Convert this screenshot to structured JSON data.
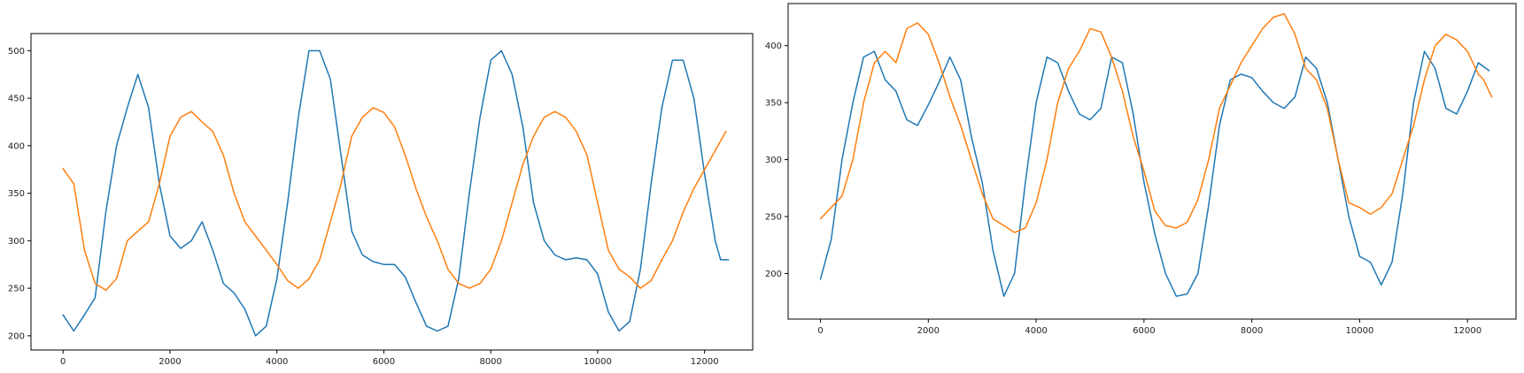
{
  "chart_data": [
    {
      "type": "line",
      "title": "",
      "xlabel": "",
      "ylabel": "",
      "xlim": [
        -600,
        12900
      ],
      "ylim": [
        185,
        518
      ],
      "xticks": [
        0,
        2000,
        4000,
        6000,
        8000,
        10000,
        12000
      ],
      "yticks": [
        200,
        250,
        300,
        350,
        400,
        450,
        500
      ],
      "grid": false,
      "series": [
        {
          "color": "#1f77b4",
          "points": [
            [
              0,
              222
            ],
            [
              200,
              205
            ],
            [
              400,
              222
            ],
            [
              600,
              240
            ],
            [
              800,
              330
            ],
            [
              1000,
              400
            ],
            [
              1200,
              440
            ],
            [
              1400,
              475
            ],
            [
              1600,
              440
            ],
            [
              1800,
              360
            ],
            [
              2000,
              305
            ],
            [
              2200,
              292
            ],
            [
              2400,
              300
            ],
            [
              2600,
              320
            ],
            [
              2800,
              290
            ],
            [
              3000,
              255
            ],
            [
              3200,
              245
            ],
            [
              3400,
              228
            ],
            [
              3600,
              200
            ],
            [
              3800,
              210
            ],
            [
              4000,
              260
            ],
            [
              4200,
              340
            ],
            [
              4400,
              430
            ],
            [
              4600,
              500
            ],
            [
              4800,
              500
            ],
            [
              5000,
              470
            ],
            [
              5200,
              390
            ],
            [
              5400,
              310
            ],
            [
              5600,
              285
            ],
            [
              5800,
              278
            ],
            [
              6000,
              275
            ],
            [
              6200,
              275
            ],
            [
              6400,
              262
            ],
            [
              6600,
              235
            ],
            [
              6800,
              210
            ],
            [
              7000,
              205
            ],
            [
              7200,
              210
            ],
            [
              7400,
              260
            ],
            [
              7600,
              350
            ],
            [
              7800,
              430
            ],
            [
              8000,
              490
            ],
            [
              8200,
              500
            ],
            [
              8400,
              475
            ],
            [
              8600,
              420
            ],
            [
              8800,
              340
            ],
            [
              9000,
              300
            ],
            [
              9200,
              285
            ],
            [
              9400,
              280
            ],
            [
              9600,
              282
            ],
            [
              9800,
              280
            ],
            [
              10000,
              265
            ],
            [
              10200,
              225
            ],
            [
              10400,
              205
            ],
            [
              10600,
              215
            ],
            [
              10800,
              270
            ],
            [
              11000,
              360
            ],
            [
              11200,
              440
            ],
            [
              11400,
              490
            ],
            [
              11600,
              490
            ],
            [
              11800,
              450
            ],
            [
              12000,
              370
            ],
            [
              12200,
              300
            ],
            [
              12300,
              280
            ],
            [
              12450,
              280
            ]
          ]
        },
        {
          "color": "#ff7f0e",
          "points": [
            [
              0,
              376
            ],
            [
              200,
              360
            ],
            [
              400,
              290
            ],
            [
              600,
              255
            ],
            [
              800,
              248
            ],
            [
              1000,
              260
            ],
            [
              1200,
              300
            ],
            [
              1400,
              310
            ],
            [
              1600,
              320
            ],
            [
              1800,
              360
            ],
            [
              2000,
              410
            ],
            [
              2200,
              430
            ],
            [
              2400,
              436
            ],
            [
              2600,
              425
            ],
            [
              2800,
              415
            ],
            [
              3000,
              390
            ],
            [
              3200,
              350
            ],
            [
              3400,
              320
            ],
            [
              3600,
              305
            ],
            [
              3800,
              290
            ],
            [
              4000,
              275
            ],
            [
              4200,
              258
            ],
            [
              4400,
              250
            ],
            [
              4600,
              260
            ],
            [
              4800,
              280
            ],
            [
              5000,
              320
            ],
            [
              5200,
              360
            ],
            [
              5400,
              410
            ],
            [
              5600,
              430
            ],
            [
              5800,
              440
            ],
            [
              6000,
              435
            ],
            [
              6200,
              420
            ],
            [
              6400,
              390
            ],
            [
              6600,
              355
            ],
            [
              6800,
              325
            ],
            [
              7000,
              300
            ],
            [
              7200,
              270
            ],
            [
              7400,
              255
            ],
            [
              7600,
              250
            ],
            [
              7800,
              255
            ],
            [
              8000,
              270
            ],
            [
              8200,
              300
            ],
            [
              8400,
              340
            ],
            [
              8600,
              380
            ],
            [
              8800,
              410
            ],
            [
              9000,
              430
            ],
            [
              9200,
              436
            ],
            [
              9400,
              430
            ],
            [
              9600,
              415
            ],
            [
              9800,
              390
            ],
            [
              10000,
              340
            ],
            [
              10200,
              290
            ],
            [
              10400,
              270
            ],
            [
              10600,
              262
            ],
            [
              10800,
              250
            ],
            [
              11000,
              258
            ],
            [
              11200,
              280
            ],
            [
              11400,
              300
            ],
            [
              11600,
              330
            ],
            [
              11800,
              355
            ],
            [
              12000,
              375
            ],
            [
              12200,
              395
            ],
            [
              12400,
              415
            ]
          ]
        }
      ]
    },
    {
      "type": "line",
      "title": "",
      "xlabel": "",
      "ylabel": "",
      "xlim": [
        -600,
        12900
      ],
      "ylim": [
        160,
        437
      ],
      "xticks": [
        0,
        2000,
        4000,
        6000,
        8000,
        10000,
        12000
      ],
      "yticks": [
        200,
        250,
        300,
        350,
        400
      ],
      "grid": false,
      "series": [
        {
          "color": "#1f77b4",
          "points": [
            [
              0,
              195
            ],
            [
              200,
              230
            ],
            [
              400,
              300
            ],
            [
              600,
              350
            ],
            [
              800,
              390
            ],
            [
              1000,
              395
            ],
            [
              1200,
              370
            ],
            [
              1400,
              360
            ],
            [
              1600,
              335
            ],
            [
              1800,
              330
            ],
            [
              2000,
              348
            ],
            [
              2200,
              368
            ],
            [
              2400,
              390
            ],
            [
              2600,
              370
            ],
            [
              2800,
              320
            ],
            [
              3000,
              280
            ],
            [
              3200,
              220
            ],
            [
              3400,
              180
            ],
            [
              3600,
              200
            ],
            [
              3800,
              280
            ],
            [
              4000,
              350
            ],
            [
              4200,
              390
            ],
            [
              4400,
              385
            ],
            [
              4600,
              360
            ],
            [
              4800,
              340
            ],
            [
              5000,
              335
            ],
            [
              5200,
              345
            ],
            [
              5400,
              390
            ],
            [
              5600,
              385
            ],
            [
              5800,
              340
            ],
            [
              6000,
              280
            ],
            [
              6200,
              235
            ],
            [
              6400,
              200
            ],
            [
              6600,
              180
            ],
            [
              6800,
              182
            ],
            [
              7000,
              200
            ],
            [
              7200,
              260
            ],
            [
              7400,
              330
            ],
            [
              7600,
              370
            ],
            [
              7800,
              375
            ],
            [
              8000,
              372
            ],
            [
              8200,
              360
            ],
            [
              8400,
              350
            ],
            [
              8600,
              345
            ],
            [
              8800,
              355
            ],
            [
              9000,
              390
            ],
            [
              9200,
              380
            ],
            [
              9400,
              350
            ],
            [
              9600,
              300
            ],
            [
              9800,
              250
            ],
            [
              10000,
              215
            ],
            [
              10200,
              210
            ],
            [
              10400,
              190
            ],
            [
              10600,
              210
            ],
            [
              10800,
              270
            ],
            [
              11000,
              350
            ],
            [
              11200,
              395
            ],
            [
              11400,
              380
            ],
            [
              11600,
              345
            ],
            [
              11800,
              340
            ],
            [
              12000,
              360
            ],
            [
              12200,
              385
            ],
            [
              12400,
              378
            ]
          ]
        },
        {
          "color": "#ff7f0e",
          "points": [
            [
              0,
              248
            ],
            [
              200,
              258
            ],
            [
              400,
              268
            ],
            [
              600,
              300
            ],
            [
              800,
              350
            ],
            [
              1000,
              385
            ],
            [
              1200,
              395
            ],
            [
              1400,
              385
            ],
            [
              1600,
              415
            ],
            [
              1800,
              420
            ],
            [
              2000,
              410
            ],
            [
              2200,
              385
            ],
            [
              2400,
              355
            ],
            [
              2600,
              330
            ],
            [
              2800,
              300
            ],
            [
              3000,
              270
            ],
            [
              3200,
              248
            ],
            [
              3400,
              242
            ],
            [
              3600,
              236
            ],
            [
              3800,
              240
            ],
            [
              4000,
              262
            ],
            [
              4200,
              300
            ],
            [
              4400,
              350
            ],
            [
              4600,
              380
            ],
            [
              4800,
              395
            ],
            [
              5000,
              415
            ],
            [
              5200,
              412
            ],
            [
              5400,
              390
            ],
            [
              5600,
              360
            ],
            [
              5800,
              320
            ],
            [
              6000,
              290
            ],
            [
              6200,
              255
            ],
            [
              6400,
              242
            ],
            [
              6600,
              240
            ],
            [
              6800,
              245
            ],
            [
              7000,
              265
            ],
            [
              7200,
              300
            ],
            [
              7400,
              345
            ],
            [
              7600,
              365
            ],
            [
              7800,
              385
            ],
            [
              8000,
              400
            ],
            [
              8200,
              415
            ],
            [
              8400,
              425
            ],
            [
              8600,
              428
            ],
            [
              8800,
              410
            ],
            [
              9000,
              380
            ],
            [
              9200,
              370
            ],
            [
              9400,
              345
            ],
            [
              9600,
              300
            ],
            [
              9800,
              262
            ],
            [
              10000,
              258
            ],
            [
              10200,
              252
            ],
            [
              10400,
              258
            ],
            [
              10600,
              270
            ],
            [
              10800,
              300
            ],
            [
              11000,
              330
            ],
            [
              11200,
              370
            ],
            [
              11400,
              400
            ],
            [
              11600,
              410
            ],
            [
              11800,
              405
            ],
            [
              12000,
              395
            ],
            [
              12200,
              375
            ],
            [
              12300,
              370
            ],
            [
              12450,
              355
            ]
          ]
        }
      ]
    }
  ]
}
